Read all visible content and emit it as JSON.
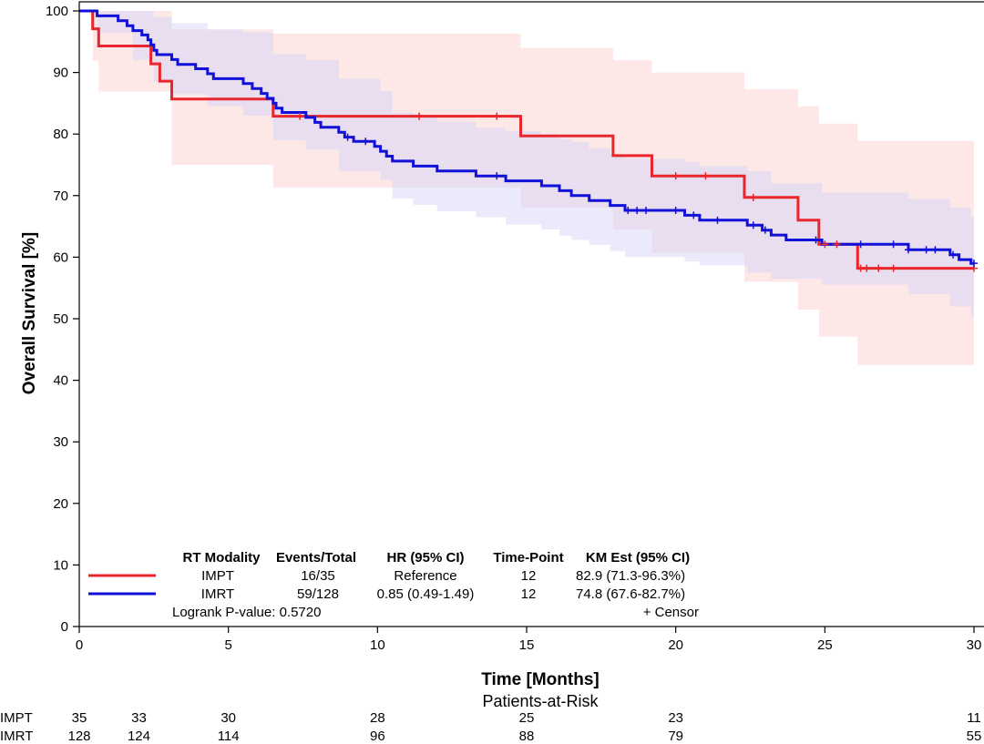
{
  "chart_data": {
    "type": "line",
    "subtype": "kaplan-meier",
    "title": "",
    "xlabel": "Time [Months]",
    "ylabel": "Overall Survival [%]",
    "xlim": [
      0,
      30
    ],
    "ylim": [
      0,
      100
    ],
    "xticks": [
      0,
      5,
      10,
      15,
      20,
      25,
      30
    ],
    "yticks": [
      0,
      10,
      20,
      30,
      40,
      50,
      60,
      70,
      80,
      90,
      100
    ],
    "grid": false,
    "series": [
      {
        "name": "IMPT",
        "color": "#e8262b",
        "band_color": "#fbd3d3",
        "steps": [
          [
            0,
            100
          ],
          [
            0.45,
            100
          ],
          [
            0.45,
            97.1
          ],
          [
            0.65,
            97.1
          ],
          [
            0.65,
            94.3
          ],
          [
            2.4,
            94.3
          ],
          [
            2.4,
            91.4
          ],
          [
            2.7,
            91.4
          ],
          [
            2.7,
            88.6
          ],
          [
            3.1,
            88.6
          ],
          [
            3.1,
            85.7
          ],
          [
            6.5,
            85.7
          ],
          [
            6.5,
            82.9
          ],
          [
            14.8,
            82.9
          ],
          [
            14.8,
            79.7
          ],
          [
            17.9,
            79.7
          ],
          [
            17.9,
            76.5
          ],
          [
            19.2,
            76.5
          ],
          [
            19.2,
            73.2
          ],
          [
            22.3,
            73.2
          ],
          [
            22.3,
            69.7
          ],
          [
            24.1,
            69.7
          ],
          [
            24.1,
            66.0
          ],
          [
            24.8,
            66.0
          ],
          [
            24.8,
            62.1
          ],
          [
            26.1,
            62.1
          ],
          [
            26.1,
            58.2
          ],
          [
            30,
            58.2
          ]
        ],
        "band_steps": [
          [
            0,
            100,
            100
          ],
          [
            0.45,
            100,
            91.9
          ],
          [
            0.65,
            100,
            86.9
          ],
          [
            2.4,
            100,
            86.9
          ],
          [
            3.1,
            97,
            75
          ],
          [
            6.5,
            97,
            73.5
          ],
          [
            6.5,
            96.3,
            71.3
          ],
          [
            14.8,
            96.3,
            71.3
          ],
          [
            14.8,
            94,
            68
          ],
          [
            17.9,
            92,
            64.5
          ],
          [
            19.2,
            90,
            60.7
          ],
          [
            22.3,
            87.3,
            56
          ],
          [
            24.1,
            84.5,
            51.5
          ],
          [
            24.8,
            81.7,
            47.1
          ],
          [
            26.1,
            78.9,
            42.5
          ],
          [
            30,
            78.9,
            42.5
          ]
        ],
        "censor": [
          7.4,
          11.4,
          14.0,
          20.0,
          21.0,
          22.6,
          25.0,
          25.4,
          26.2,
          26.4,
          26.8,
          27.3,
          30.0
        ]
      },
      {
        "name": "IMRT",
        "color": "#1010d8",
        "band_color": "#d6d6f7",
        "steps": [
          [
            0,
            100
          ],
          [
            0.6,
            100
          ],
          [
            0.6,
            99.2
          ],
          [
            1.3,
            99.2
          ],
          [
            1.3,
            98.4
          ],
          [
            1.6,
            98.4
          ],
          [
            1.6,
            97.6
          ],
          [
            1.8,
            97.6
          ],
          [
            1.8,
            96.8
          ],
          [
            2.1,
            96.8
          ],
          [
            2.1,
            96.1
          ],
          [
            2.3,
            96.1
          ],
          [
            2.3,
            95.3
          ],
          [
            2.4,
            95.3
          ],
          [
            2.4,
            94.5
          ],
          [
            2.5,
            94.5
          ],
          [
            2.5,
            93.6
          ],
          [
            2.6,
            93.6
          ],
          [
            2.6,
            92.9
          ],
          [
            3.1,
            92.9
          ],
          [
            3.1,
            92.1
          ],
          [
            3.3,
            92.1
          ],
          [
            3.3,
            91.3
          ],
          [
            3.9,
            91.3
          ],
          [
            3.9,
            90.6
          ],
          [
            4.3,
            90.6
          ],
          [
            4.3,
            89.8
          ],
          [
            4.5,
            89.8
          ],
          [
            4.5,
            89.0
          ],
          [
            5.5,
            89.0
          ],
          [
            5.5,
            88.2
          ],
          [
            5.8,
            88.2
          ],
          [
            5.8,
            87.4
          ],
          [
            6.1,
            87.4
          ],
          [
            6.1,
            86.6
          ],
          [
            6.3,
            86.6
          ],
          [
            6.3,
            85.8
          ],
          [
            6.5,
            85.8
          ],
          [
            6.5,
            85.0
          ],
          [
            6.6,
            85.0
          ],
          [
            6.6,
            84.2
          ],
          [
            6.8,
            84.2
          ],
          [
            6.8,
            83.5
          ],
          [
            7.6,
            83.5
          ],
          [
            7.6,
            82.7
          ],
          [
            7.9,
            82.7
          ],
          [
            7.9,
            81.9
          ],
          [
            8.1,
            81.9
          ],
          [
            8.1,
            81.1
          ],
          [
            8.7,
            81.1
          ],
          [
            8.7,
            80.3
          ],
          [
            8.9,
            80.3
          ],
          [
            8.9,
            79.5
          ],
          [
            9.2,
            79.5
          ],
          [
            9.2,
            78.8
          ],
          [
            9.9,
            78.8
          ],
          [
            9.9,
            78.0
          ],
          [
            10.1,
            78.0
          ],
          [
            10.1,
            77.2
          ],
          [
            10.3,
            77.2
          ],
          [
            10.3,
            76.4
          ],
          [
            10.5,
            76.4
          ],
          [
            10.5,
            75.6
          ],
          [
            11.2,
            75.6
          ],
          [
            11.2,
            74.8
          ],
          [
            12.0,
            74.8
          ],
          [
            12.0,
            74.0
          ],
          [
            13.3,
            74.0
          ],
          [
            13.3,
            73.2
          ],
          [
            14.3,
            73.2
          ],
          [
            14.3,
            72.4
          ],
          [
            15.5,
            72.4
          ],
          [
            15.5,
            71.6
          ],
          [
            16.1,
            71.6
          ],
          [
            16.1,
            70.8
          ],
          [
            16.5,
            70.8
          ],
          [
            16.5,
            70.0
          ],
          [
            17.1,
            70.0
          ],
          [
            17.1,
            69.2
          ],
          [
            17.8,
            69.2
          ],
          [
            17.8,
            68.4
          ],
          [
            18.3,
            68.4
          ],
          [
            18.3,
            67.6
          ],
          [
            20.3,
            67.6
          ],
          [
            20.3,
            66.8
          ],
          [
            20.8,
            66.8
          ],
          [
            20.8,
            66.0
          ],
          [
            22.4,
            66.0
          ],
          [
            22.4,
            65.2
          ],
          [
            22.9,
            65.2
          ],
          [
            22.9,
            64.4
          ],
          [
            23.2,
            64.4
          ],
          [
            23.2,
            63.6
          ],
          [
            23.7,
            63.6
          ],
          [
            23.7,
            62.8
          ],
          [
            24.9,
            62.8
          ],
          [
            24.9,
            62.1
          ],
          [
            27.8,
            62.1
          ],
          [
            27.8,
            61.2
          ],
          [
            29.2,
            61.2
          ],
          [
            29.2,
            60.4
          ],
          [
            29.5,
            60.4
          ],
          [
            29.5,
            59.6
          ],
          [
            29.9,
            59.6
          ],
          [
            29.9,
            59.0
          ],
          [
            30,
            59.0
          ]
        ],
        "band_steps": [
          [
            0,
            100,
            100
          ],
          [
            0.6,
            100,
            96.5
          ],
          [
            1.8,
            100,
            92
          ],
          [
            2.5,
            99,
            88.5
          ],
          [
            3.1,
            98,
            86.5
          ],
          [
            4.3,
            97,
            84.5
          ],
          [
            5.5,
            96.5,
            83
          ],
          [
            6.5,
            93,
            79
          ],
          [
            7.6,
            92,
            77.5
          ],
          [
            8.7,
            89,
            74
          ],
          [
            10.1,
            87,
            72.5
          ],
          [
            10.5,
            83.5,
            69.5
          ],
          [
            11.2,
            82.7,
            68.5
          ],
          [
            12.0,
            82,
            67.5
          ],
          [
            13.3,
            81,
            66.5
          ],
          [
            14.3,
            80.5,
            65.3
          ],
          [
            15.5,
            80,
            64.5
          ],
          [
            16.1,
            79.2,
            63.5
          ],
          [
            16.5,
            78.7,
            62.8
          ],
          [
            17.1,
            77.7,
            62
          ],
          [
            17.8,
            76.7,
            61
          ],
          [
            18.3,
            76,
            60
          ],
          [
            20.3,
            75.5,
            59.3
          ],
          [
            20.8,
            74.8,
            58.7
          ],
          [
            22.4,
            74,
            57.5
          ],
          [
            23.2,
            72,
            56.5
          ],
          [
            24.9,
            70.5,
            55.5
          ],
          [
            27.8,
            69.5,
            54
          ],
          [
            29.2,
            68,
            52
          ],
          [
            29.9,
            66.5,
            50.5
          ],
          [
            30,
            66.5,
            50.5
          ]
        ],
        "censor": [
          9.0,
          9.6,
          14.0,
          18.4,
          18.7,
          19.0,
          20.0,
          20.6,
          21.4,
          22.6,
          23.0,
          24.7,
          26.2,
          27.3,
          27.8,
          28.4,
          28.7,
          29.3,
          30.0
        ]
      }
    ],
    "legend": {
      "headers": [
        "RT Modality",
        "Events/Total",
        "HR (95% CI)",
        "Time-Point",
        "KM Est (95% CI)"
      ],
      "rows": [
        {
          "modality": "IMPT",
          "events": "16/35",
          "hr": "Reference",
          "timepoint": "12",
          "km": "82.9 (71.3-96.3%)"
        },
        {
          "modality": "IMRT",
          "events": "59/128",
          "hr": "0.85 (0.49-1.49)",
          "timepoint": "12",
          "km": "74.8 (67.6-82.7%)"
        }
      ],
      "logrank": "Logrank P-value: 0.5720",
      "censor_label": "+ Censor"
    },
    "risk_table": {
      "title": "Patients-at-Risk",
      "rows": [
        {
          "label": "IMPT",
          "counts": [
            [
              0,
              35
            ],
            [
              2,
              33
            ],
            [
              5,
              30
            ],
            [
              10,
              28
            ],
            [
              15,
              25
            ],
            [
              20,
              23
            ],
            [
              30,
              11
            ]
          ]
        },
        {
          "label": "IMRT",
          "counts": [
            [
              0,
              128
            ],
            [
              2,
              124
            ],
            [
              5,
              114
            ],
            [
              10,
              96
            ],
            [
              15,
              88
            ],
            [
              20,
              79
            ],
            [
              30,
              55
            ]
          ]
        }
      ]
    }
  }
}
